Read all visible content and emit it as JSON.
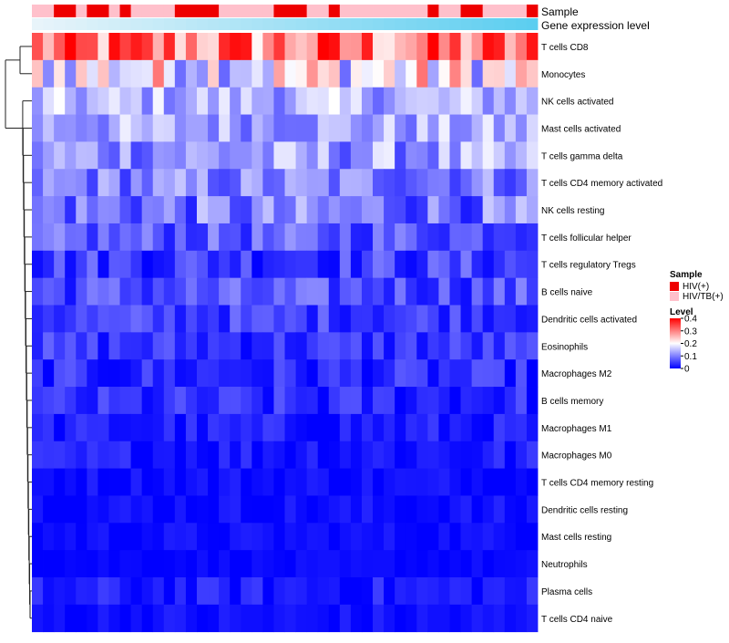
{
  "chart_data": {
    "type": "heatmap",
    "title": "",
    "annotation_tracks": [
      "Sample",
      "Gene expression level"
    ],
    "legend_sample": {
      "title": "Sample",
      "entries": [
        {
          "label": "HIV(+)",
          "color": "#ee0000"
        },
        {
          "label": "HIV/TB(+)",
          "color": "#ffc0cb"
        }
      ]
    },
    "legend_level": {
      "title": "Level",
      "ticks": [
        "0.4",
        "0.3",
        "0.2",
        "0.1",
        "0"
      ],
      "tick_values": [
        0.4,
        0.3,
        0.2,
        0.1,
        0
      ],
      "range": [
        0,
        0.4
      ],
      "colors": [
        "#0000ff",
        "#ffffff",
        "#ff0000"
      ]
    },
    "sample_groups": [
      1,
      1,
      0,
      0,
      1,
      0,
      0,
      1,
      0,
      1,
      1,
      1,
      1,
      0,
      0,
      0,
      0,
      1,
      1,
      1,
      1,
      1,
      0,
      0,
      0,
      1,
      1,
      0,
      1,
      1,
      1,
      1,
      1,
      1,
      1,
      1,
      0,
      1,
      1,
      0,
      0,
      1,
      1,
      1,
      1,
      0
    ],
    "rows": [
      "T cells CD8",
      "Monocytes",
      "NK cells activated",
      "Mast cells activated",
      "T cells gamma delta",
      "T cells CD4 memory activated",
      "NK cells resting",
      "T cells follicular helper",
      "T cells regulatory  Tregs",
      "B cells naive",
      "Dendritic cells activated",
      "Eosinophils",
      "Macrophages M2",
      "B cells memory",
      "Macrophages M1",
      "Macrophages M0",
      "T cells CD4 memory resting",
      "Dendritic cells resting",
      "Mast cells resting",
      "Neutrophils",
      "Plasma cells",
      "T cells CD4 naive"
    ],
    "row_means": [
      0.3,
      0.2,
      0.14,
      0.13,
      0.12,
      0.1,
      0.09,
      0.07,
      0.05,
      0.06,
      0.05,
      0.04,
      0.03,
      0.03,
      0.02,
      0.02,
      0.01,
      0.01,
      0.01,
      0.005,
      0.02,
      0.01
    ],
    "row_spreads": [
      0.12,
      0.12,
      0.06,
      0.06,
      0.07,
      0.06,
      0.07,
      0.05,
      0.05,
      0.05,
      0.04,
      0.04,
      0.04,
      0.04,
      0.03,
      0.03,
      0.02,
      0.02,
      0.015,
      0.01,
      0.03,
      0.02
    ],
    "n_columns": 46
  }
}
